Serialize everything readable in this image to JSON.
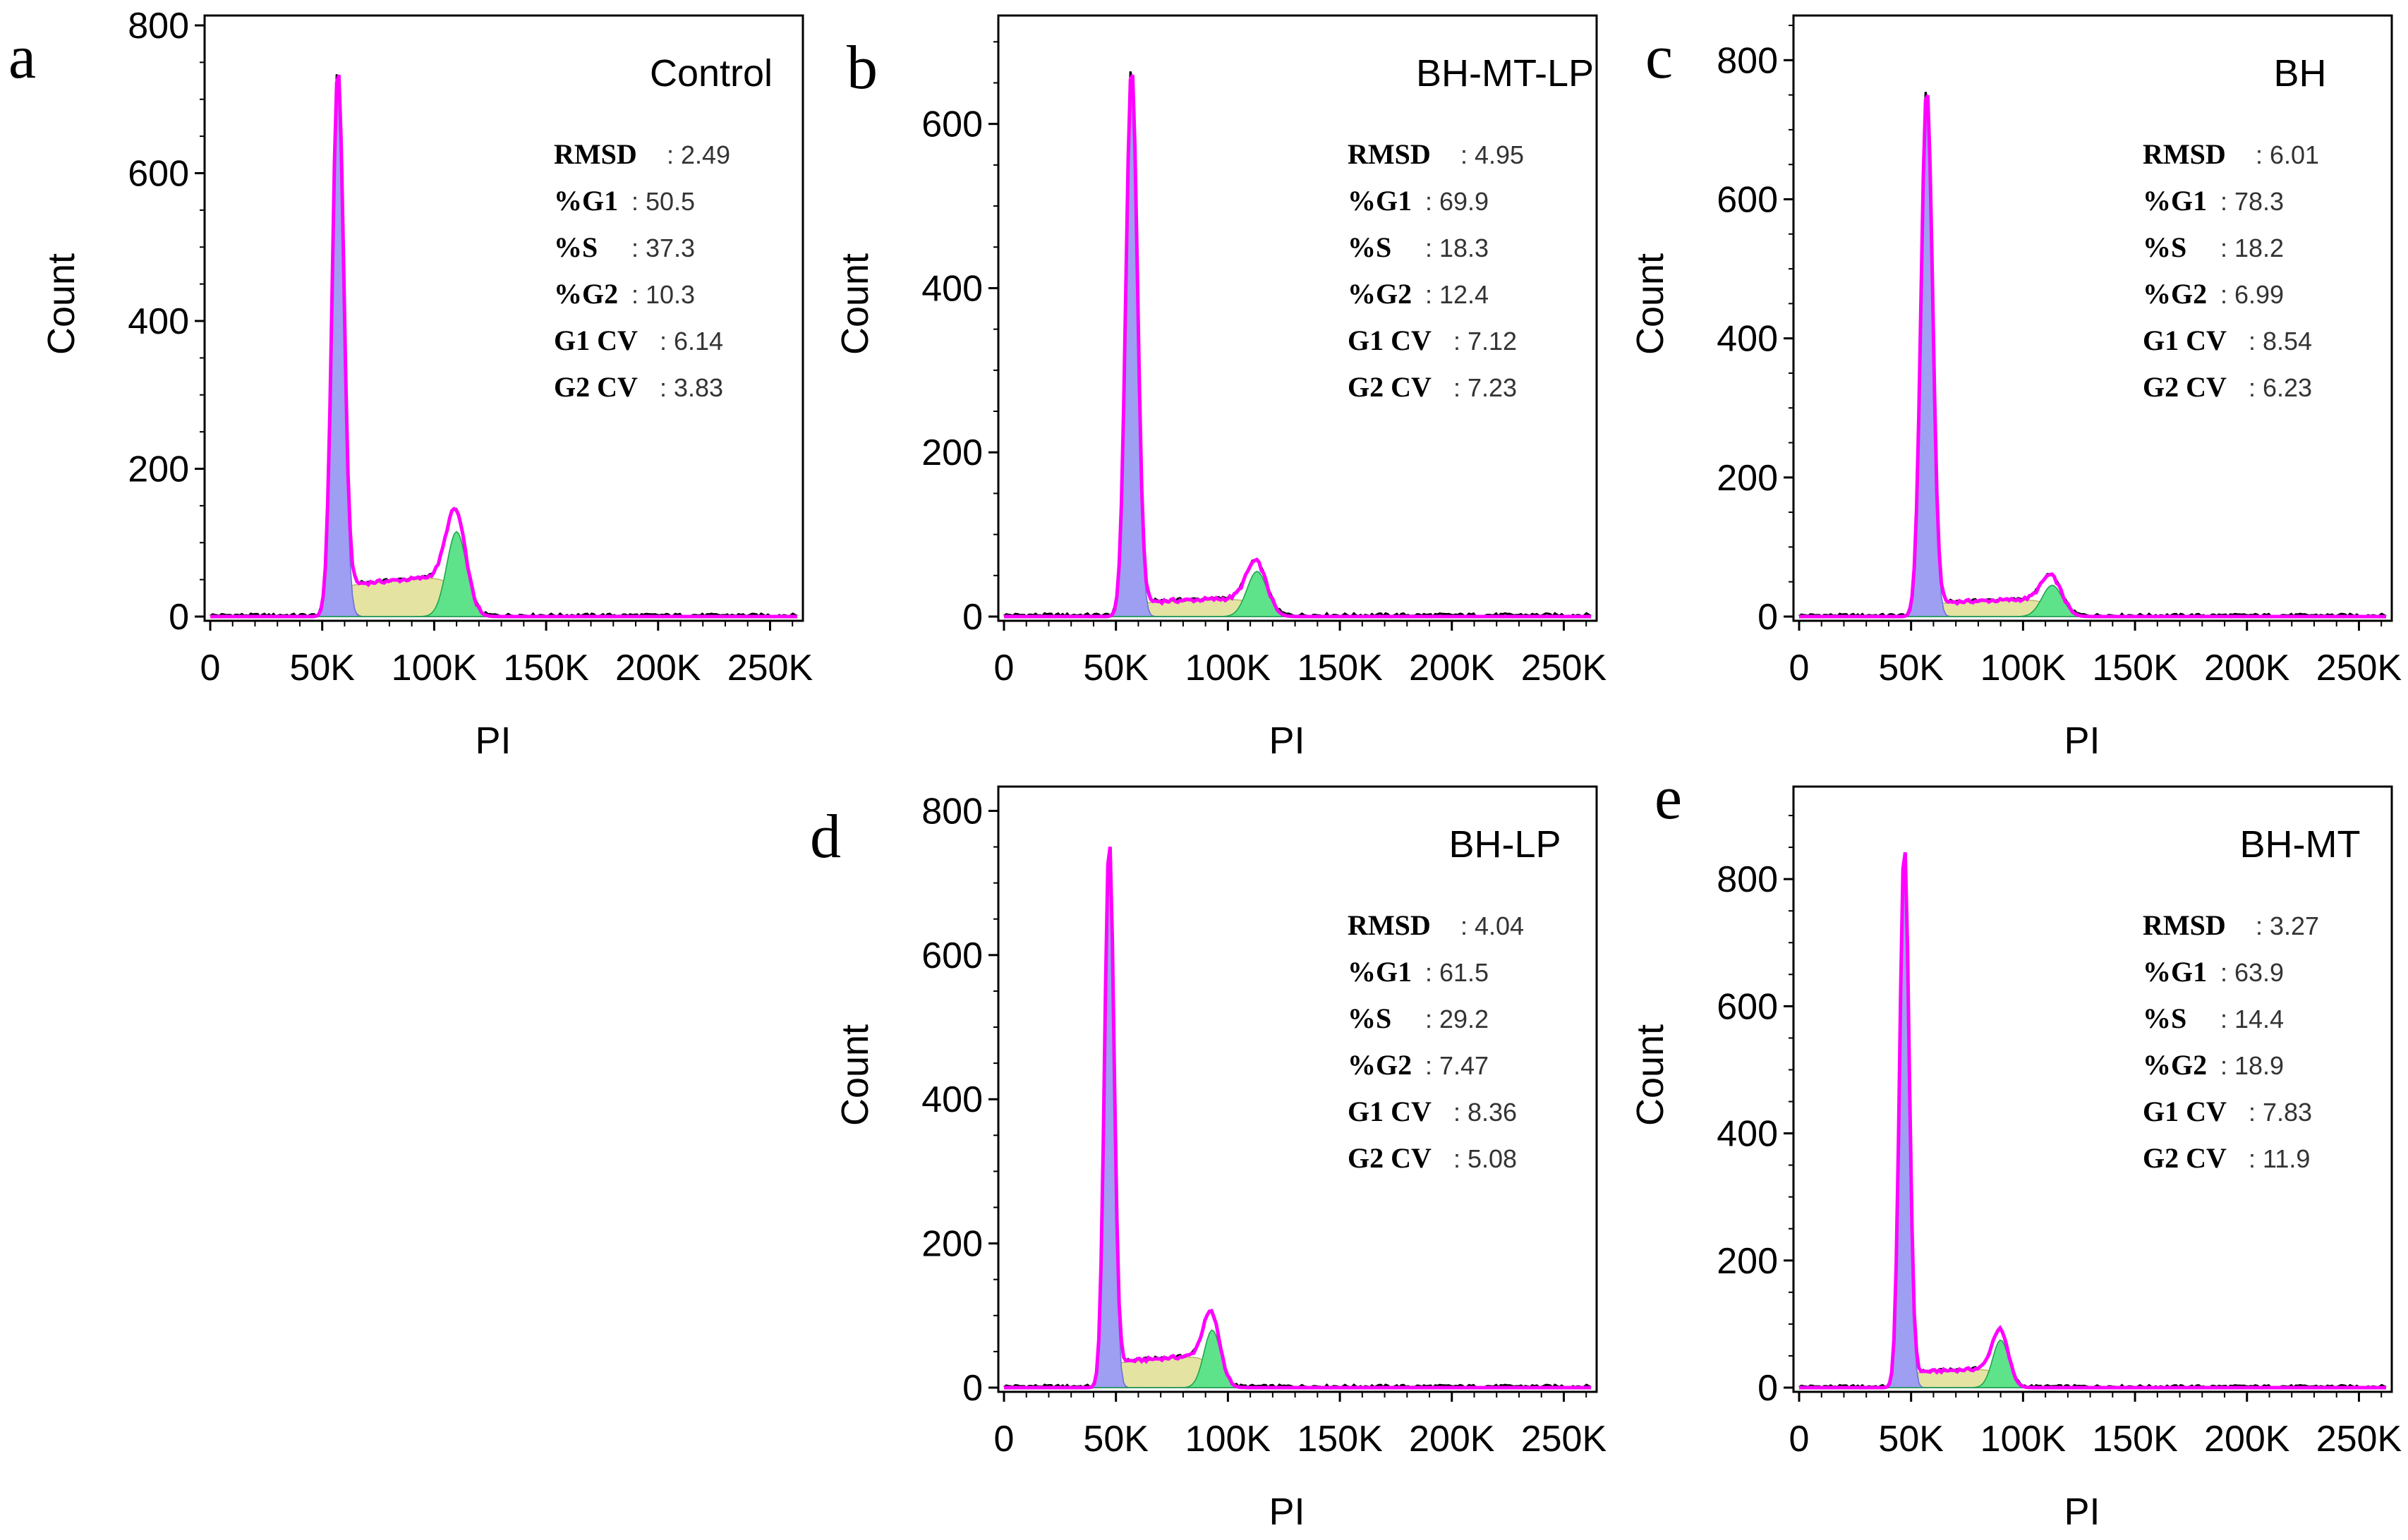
{
  "colors": {
    "g1_fill": "#9e9ef2",
    "s_fill": "#e4e3a2",
    "g2_fill": "#5ee28a",
    "debris_fill": "#a8a8a8",
    "fit_line": "#ff00ff",
    "data_line": "#000000",
    "axis": "#000000"
  },
  "chart_data": [
    {
      "type": "area",
      "panel": "a",
      "sample": "Control",
      "xlabel": "PI",
      "ylabel": "Count",
      "xlim": [
        0,
        262144
      ],
      "ylim": [
        0,
        800
      ],
      "xticks": [
        0,
        50000,
        100000,
        150000,
        200000,
        250000
      ],
      "xtick_labels": [
        "0",
        "50K",
        "100K",
        "150K",
        "200K",
        "250K"
      ],
      "yticks": [
        0,
        200,
        400,
        600,
        800
      ],
      "ytick_labels": [
        "0",
        "200",
        "400",
        "600",
        "800"
      ],
      "stats": [
        {
          "key": "RMSD",
          "value": "2.49"
        },
        {
          "key": "%G1",
          "value": "50.5"
        },
        {
          "key": "%S",
          "value": "37.3"
        },
        {
          "key": "%G2",
          "value": "10.3"
        },
        {
          "key": "G1 CV",
          "value": "6.14"
        },
        {
          "key": "G2 CV",
          "value": "3.83"
        }
      ],
      "g1_peak": 57000,
      "g1_height": 720,
      "g2_peak": 110000,
      "g2_height": 115,
      "s_level": 55
    },
    {
      "type": "area",
      "panel": "b",
      "sample": "BH-MT-LP",
      "xlabel": "PI",
      "ylabel": "Count",
      "xlim": [
        0,
        262144
      ],
      "ylim": [
        0,
        720
      ],
      "xticks": [
        0,
        50000,
        100000,
        150000,
        200000,
        250000
      ],
      "xtick_labels": [
        "0",
        "50K",
        "100K",
        "150K",
        "200K",
        "250K"
      ],
      "yticks": [
        0,
        200,
        400,
        600
      ],
      "ytick_labels": [
        "0",
        "200",
        "400",
        "600"
      ],
      "stats": [
        {
          "key": "RMSD",
          "value": "4.95"
        },
        {
          "key": "%G1",
          "value": "69.9"
        },
        {
          "key": "%S",
          "value": "18.3"
        },
        {
          "key": "%G2",
          "value": "12.4"
        },
        {
          "key": "G1 CV",
          "value": "7.12"
        },
        {
          "key": "G2 CV",
          "value": "7.23"
        }
      ],
      "g1_peak": 57000,
      "g1_height": 660,
      "g2_peak": 113000,
      "g2_height": 55,
      "s_level": 22
    },
    {
      "type": "area",
      "panel": "c",
      "sample": "BH",
      "xlabel": "PI",
      "ylabel": "Count",
      "xlim": [
        0,
        262144
      ],
      "ylim": [
        0,
        850
      ],
      "xticks": [
        0,
        50000,
        100000,
        150000,
        200000,
        250000
      ],
      "xtick_labels": [
        "0",
        "50K",
        "100K",
        "150K",
        "200K",
        "250K"
      ],
      "yticks": [
        0,
        200,
        400,
        600,
        800
      ],
      "ytick_labels": [
        "0",
        "200",
        "400",
        "600",
        "800"
      ],
      "stats": [
        {
          "key": "RMSD",
          "value": "6.01"
        },
        {
          "key": "%G1",
          "value": "78.3"
        },
        {
          "key": "%S",
          "value": "18.2"
        },
        {
          "key": "%G2",
          "value": "6.99"
        },
        {
          "key": "G1 CV",
          "value": "8.54"
        },
        {
          "key": "G2 CV",
          "value": "6.23"
        }
      ],
      "g1_peak": 57000,
      "g1_height": 750,
      "g2_peak": 113000,
      "g2_height": 45,
      "s_level": 25
    },
    {
      "type": "area",
      "panel": "d",
      "sample": "BH-LP",
      "xlabel": "PI",
      "ylabel": "Count",
      "xlim": [
        0,
        262144
      ],
      "ylim": [
        0,
        820
      ],
      "xticks": [
        0,
        50000,
        100000,
        150000,
        200000,
        250000
      ],
      "xtick_labels": [
        "0",
        "50K",
        "100K",
        "150K",
        "200K",
        "250K"
      ],
      "yticks": [
        0,
        200,
        400,
        600,
        800
      ],
      "ytick_labels": [
        "0",
        "200",
        "400",
        "600",
        "800"
      ],
      "stats": [
        {
          "key": "RMSD",
          "value": "4.04"
        },
        {
          "key": "%G1",
          "value": "61.5"
        },
        {
          "key": "%S",
          "value": "29.2"
        },
        {
          "key": "%G2",
          "value": "7.47"
        },
        {
          "key": "G1 CV",
          "value": "8.36"
        },
        {
          "key": "G2 CV",
          "value": "5.08"
        }
      ],
      "g1_peak": 47000,
      "g1_height": 740,
      "g2_peak": 93000,
      "g2_height": 80,
      "s_level": 45
    },
    {
      "type": "area",
      "panel": "e",
      "sample": "BH-MT",
      "xlabel": "PI",
      "ylabel": "Count",
      "xlim": [
        0,
        262144
      ],
      "ylim": [
        0,
        930
      ],
      "xticks": [
        0,
        50000,
        100000,
        150000,
        200000,
        250000
      ],
      "xtick_labels": [
        "0",
        "50K",
        "100K",
        "150K",
        "200K",
        "250K"
      ],
      "yticks": [
        0,
        200,
        400,
        600,
        800
      ],
      "ytick_labels": [
        "0",
        "200",
        "400",
        "600",
        "800"
      ],
      "stats": [
        {
          "key": "RMSD",
          "value": "3.27"
        },
        {
          "key": "%G1",
          "value": "63.9"
        },
        {
          "key": "%S",
          "value": "14.4"
        },
        {
          "key": "%G2",
          "value": "18.9"
        },
        {
          "key": "G1 CV",
          "value": "7.83"
        },
        {
          "key": "G2 CV",
          "value": "11.9"
        }
      ],
      "g1_peak": 47000,
      "g1_height": 840,
      "g2_peak": 90000,
      "g2_height": 75,
      "s_level": 30
    }
  ]
}
